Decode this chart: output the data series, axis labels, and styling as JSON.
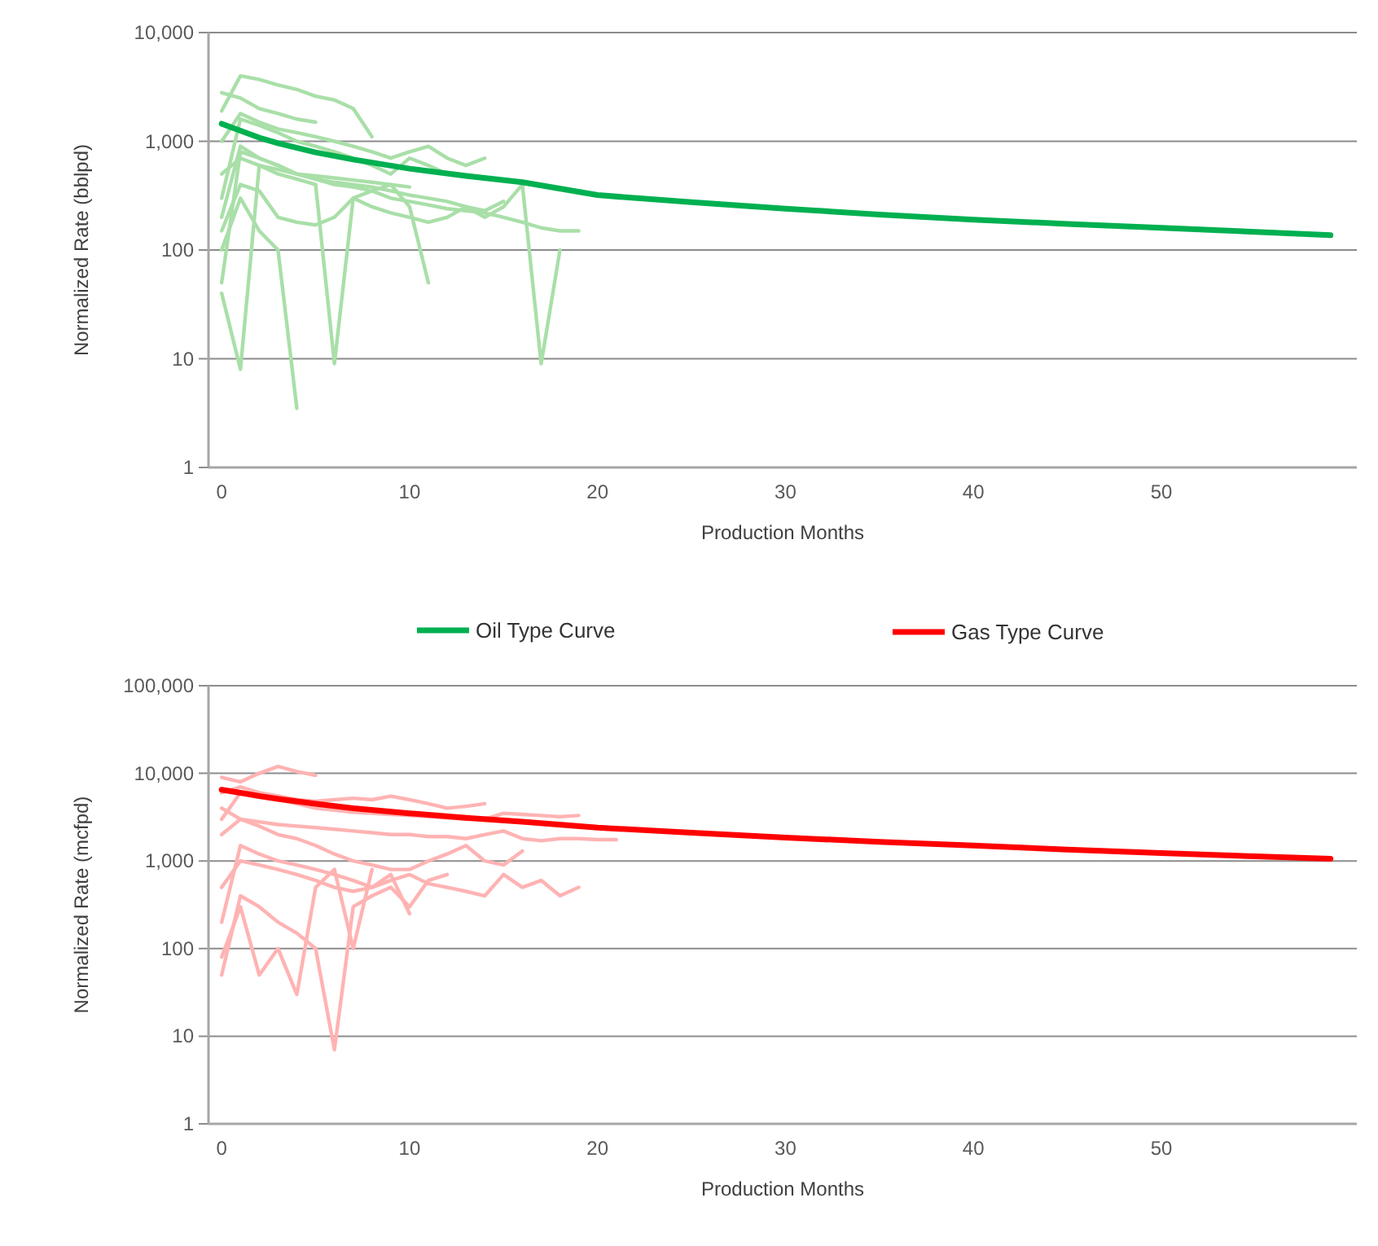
{
  "chart_data": [
    {
      "type": "line",
      "xlabel": "Production Months",
      "ylabel": "Normalized Rate (bblpd)",
      "log": "y",
      "grid": "y",
      "legend": "bottom",
      "xlim": [
        -0.7,
        60.4
      ],
      "xticks": [
        0,
        10,
        20,
        30,
        40,
        50
      ],
      "ylim": [
        1,
        10000
      ],
      "yticks": [
        1,
        10,
        100,
        {
          "value": 1000,
          "label": "1,000"
        },
        {
          "value": 10000,
          "label": "10,000"
        }
      ],
      "series": [
        {
          "color": "#a9dfa8",
          "x": [
            0,
            1,
            2,
            3,
            4,
            5,
            6,
            7,
            8
          ],
          "values": [
            1900,
            4000,
            3700,
            3300,
            3000,
            2600,
            2400,
            2000,
            1100
          ]
        },
        {
          "color": "#a9dfa8",
          "x": [
            0,
            1,
            2,
            3,
            4,
            5,
            6,
            7,
            8,
            9,
            10,
            11,
            12
          ],
          "values": [
            300,
            1600,
            1400,
            1200,
            1000,
            900,
            800,
            700,
            600,
            500,
            700,
            600,
            500
          ]
        },
        {
          "color": "#a9dfa8",
          "x": [
            0,
            1,
            2,
            3,
            4,
            5,
            6,
            7,
            8,
            9,
            10,
            11,
            12,
            13,
            14,
            15,
            16,
            17,
            18
          ],
          "values": [
            50,
            800,
            700,
            600,
            500,
            450,
            420,
            400,
            380,
            350,
            320,
            300,
            280,
            250,
            200,
            250,
            400,
            9,
            100
          ]
        },
        {
          "color": "#a9dfa8",
          "x": [
            0,
            1,
            2,
            3,
            4,
            5,
            6,
            7,
            8,
            9,
            10,
            11
          ],
          "values": [
            40,
            8,
            600,
            500,
            450,
            400,
            9,
            300,
            350,
            400,
            250,
            50
          ]
        },
        {
          "color": "#a9dfa8",
          "x": [
            0,
            1,
            2,
            3,
            4
          ],
          "values": [
            100,
            300,
            150,
            100,
            3.5
          ]
        },
        {
          "color": "#a9dfa8",
          "x": [
            0,
            1,
            2,
            3,
            4,
            5,
            6,
            7,
            8,
            9,
            10,
            11,
            12,
            13,
            14,
            15,
            16,
            17,
            18,
            19
          ],
          "values": [
            200,
            900,
            700,
            600,
            500,
            450,
            400,
            380,
            350,
            300,
            280,
            260,
            240,
            230,
            220,
            200,
            180,
            160,
            150,
            150
          ]
        },
        {
          "color": "#a9dfa8",
          "x": [
            0,
            1,
            2,
            3,
            4,
            5,
            6,
            7,
            8,
            9,
            10,
            11,
            12,
            13,
            14
          ],
          "values": [
            1000,
            1800,
            1500,
            1300,
            1200,
            1100,
            1000,
            900,
            800,
            700,
            800,
            900,
            700,
            600,
            700
          ]
        },
        {
          "color": "#a9dfa8",
          "x": [
            0,
            1,
            2,
            3,
            4,
            5,
            6,
            7,
            8,
            9,
            10
          ],
          "values": [
            500,
            700,
            600,
            550,
            500,
            480,
            460,
            440,
            420,
            400,
            380
          ]
        },
        {
          "color": "#a9dfa8",
          "x": [
            0,
            1,
            2,
            3,
            4,
            5,
            6,
            7,
            8,
            9,
            10,
            11,
            12,
            13,
            14,
            15
          ],
          "values": [
            150,
            400,
            350,
            200,
            180,
            170,
            200,
            300,
            250,
            220,
            200,
            180,
            200,
            250,
            230,
            280
          ]
        },
        {
          "color": "#a9dfa8",
          "x": [
            0,
            1,
            2,
            3,
            4,
            5
          ],
          "values": [
            2800,
            2500,
            2000,
            1800,
            1600,
            1500
          ]
        },
        {
          "name": "Oil Type Curve",
          "color": "#00b050",
          "x": [
            0,
            1,
            2,
            3,
            5,
            7,
            10,
            13,
            16,
            20,
            25,
            30,
            35,
            40,
            45,
            50,
            55,
            59
          ],
          "values": [
            1450,
            1250,
            1080,
            960,
            790,
            680,
            560,
            480,
            420,
            320,
            275,
            240,
            212,
            190,
            174,
            160,
            147,
            137
          ]
        }
      ]
    },
    {
      "type": "line",
      "xlabel": "Production Months",
      "ylabel": "Normalized Rate (mcfpd)",
      "log": "y",
      "grid": "y",
      "legend": "top",
      "xlim": [
        -0.7,
        60.4
      ],
      "xticks": [
        0,
        10,
        20,
        30,
        40,
        50
      ],
      "ylim": [
        1,
        100000
      ],
      "yticks": [
        1,
        10,
        100,
        {
          "value": 1000,
          "label": "1,000"
        },
        {
          "value": 10000,
          "label": "10,000"
        },
        {
          "value": 100000,
          "label": "100,000"
        }
      ],
      "series": [
        {
          "color": "#ffb3b3",
          "x": [
            0,
            1,
            2,
            3,
            4,
            5,
            6,
            7,
            8,
            9,
            10,
            11,
            12,
            13,
            14,
            15,
            16,
            17,
            18,
            19
          ],
          "values": [
            3000,
            6000,
            5500,
            5000,
            4500,
            4000,
            3800,
            3600,
            3500,
            3400,
            3300,
            3200,
            3100,
            3000,
            3000,
            3500,
            3400,
            3300,
            3200,
            3300
          ]
        },
        {
          "color": "#ffb3b3",
          "x": [
            0,
            1,
            2,
            3,
            4,
            5
          ],
          "values": [
            9000,
            8000,
            10000,
            12000,
            10500,
            9500
          ]
        },
        {
          "color": "#ffb3b3",
          "x": [
            0,
            1,
            2,
            3,
            4,
            5,
            6,
            7,
            8,
            9,
            10,
            11,
            12,
            13,
            14,
            15,
            16,
            17,
            18,
            19
          ],
          "values": [
            500,
            1000,
            900,
            800,
            700,
            600,
            500,
            450,
            500,
            600,
            700,
            550,
            500,
            450,
            400,
            700,
            500,
            600,
            400,
            500
          ]
        },
        {
          "color": "#ffb3b3",
          "x": [
            0,
            1,
            2,
            3,
            4,
            5,
            6,
            7,
            8,
            9,
            10,
            11,
            12
          ],
          "values": [
            50,
            400,
            300,
            200,
            150,
            100,
            7,
            300,
            400,
            500,
            300,
            600,
            700
          ]
        },
        {
          "color": "#ffb3b3",
          "x": [
            0,
            1,
            2,
            3,
            4,
            5,
            6,
            7,
            8
          ],
          "values": [
            80,
            300,
            50,
            100,
            30,
            500,
            800,
            100,
            800
          ]
        },
        {
          "color": "#ffb3b3",
          "x": [
            0,
            1,
            2,
            3,
            4,
            5,
            6,
            7,
            8,
            9,
            10,
            11,
            12,
            13,
            14,
            15,
            16,
            17,
            18,
            19,
            20,
            21
          ],
          "values": [
            2000,
            3000,
            2800,
            2600,
            2500,
            2400,
            2300,
            2200,
            2100,
            2000,
            2000,
            1900,
            1900,
            1800,
            2000,
            2200,
            1800,
            1700,
            1800,
            1800,
            1750,
            1750
          ]
        },
        {
          "color": "#ffb3b3",
          "x": [
            0,
            1,
            2,
            3,
            4,
            5,
            6,
            7,
            8,
            9,
            10,
            11,
            12,
            13,
            14
          ],
          "values": [
            6000,
            7000,
            6000,
            5500,
            5000,
            4800,
            5000,
            5200,
            5000,
            5500,
            5000,
            4500,
            4000,
            4200,
            4500
          ]
        },
        {
          "color": "#ffb3b3",
          "x": [
            0,
            1,
            2,
            3,
            4,
            5,
            6,
            7,
            8,
            9,
            10
          ],
          "values": [
            200,
            1500,
            1200,
            1000,
            900,
            800,
            700,
            600,
            500,
            700,
            250
          ]
        },
        {
          "color": "#ffb3b3",
          "x": [
            0,
            1,
            2,
            3,
            4,
            5,
            6,
            7,
            8,
            9,
            10,
            11,
            12,
            13,
            14,
            15,
            16
          ],
          "values": [
            4000,
            3000,
            2500,
            2000,
            1800,
            1500,
            1200,
            1000,
            900,
            800,
            800,
            1000,
            1200,
            1500,
            1000,
            900,
            1300
          ]
        },
        {
          "name": "Gas Type Curve",
          "color": "#ff0000",
          "x": [
            0,
            1,
            2,
            3,
            5,
            7,
            10,
            13,
            16,
            20,
            25,
            30,
            35,
            40,
            45,
            50,
            55,
            59
          ],
          "values": [
            6500,
            6000,
            5500,
            5100,
            4500,
            4000,
            3500,
            3100,
            2800,
            2400,
            2100,
            1850,
            1650,
            1500,
            1350,
            1230,
            1130,
            1060
          ]
        }
      ]
    }
  ]
}
